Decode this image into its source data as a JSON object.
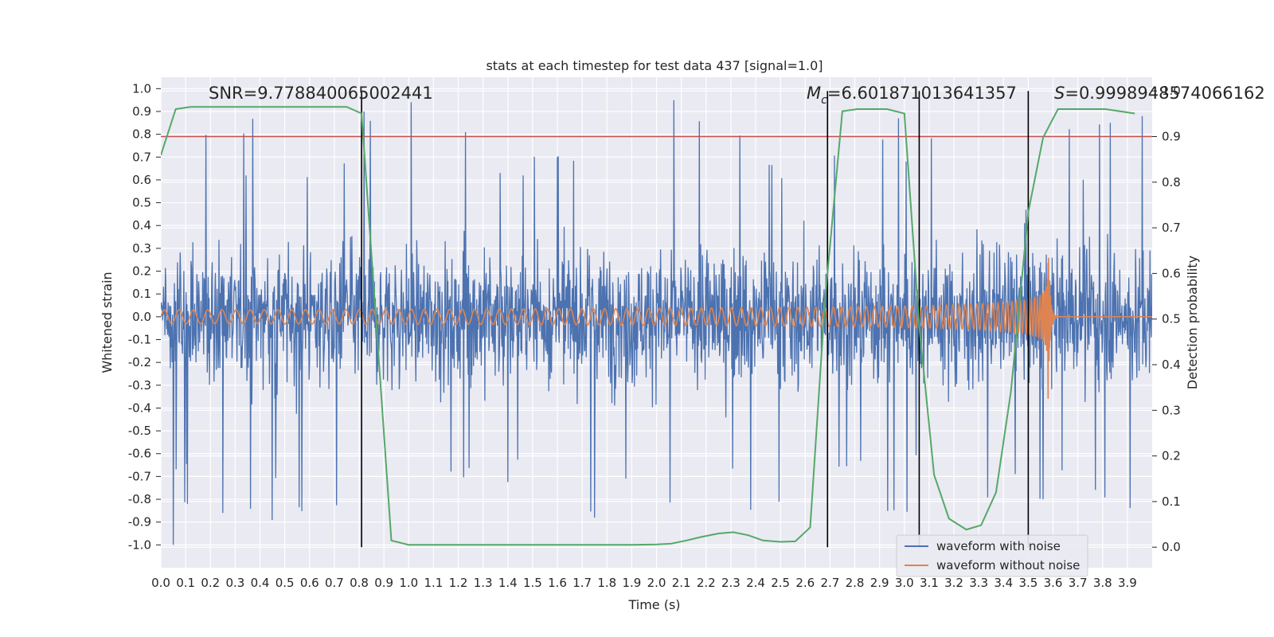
{
  "chart_data": {
    "type": "line",
    "title": "stats at each timestep for test data 437 [signal=1.0]",
    "xlabel": "Time (s)",
    "ylabel": "Whitened strain",
    "y2label": "Detection probability",
    "xlim": [
      0.0,
      4.0
    ],
    "ylim": [
      -1.1,
      1.05
    ],
    "y2lim": [
      -0.045,
      1.03
    ],
    "x_ticks": [
      "0.0",
      "0.1",
      "0.2",
      "0.3",
      "0.4",
      "0.5",
      "0.6",
      "0.7",
      "0.8",
      "0.9",
      "1.0",
      "1.1",
      "1.2",
      "1.3",
      "1.4",
      "1.5",
      "1.6",
      "1.7",
      "1.8",
      "1.9",
      "2.0",
      "2.1",
      "2.2",
      "2.3",
      "2.4",
      "2.5",
      "2.6",
      "2.7",
      "2.8",
      "2.9",
      "3.0",
      "3.1",
      "3.2",
      "3.3",
      "3.4",
      "3.5",
      "3.6",
      "3.7",
      "3.8",
      "3.9"
    ],
    "y_ticks": [
      "1.0",
      "0.9",
      "0.8",
      "0.7",
      "0.6",
      "0.5",
      "0.4",
      "0.3",
      "0.2",
      "0.1",
      "0.0",
      "-0.1",
      "-0.2",
      "-0.3",
      "-0.4",
      "-0.5",
      "-0.6",
      "-0.7",
      "-0.8",
      "-0.9",
      "-1.0"
    ],
    "y2_ticks": [
      "1.0",
      "0.9",
      "0.8",
      "0.7",
      "0.6",
      "0.5",
      "0.4",
      "0.3",
      "0.2",
      "0.1",
      "0.0"
    ],
    "series": [
      {
        "name": "waveform with noise",
        "axis": "left",
        "color": "#4c72b0",
        "description": "noisy whitened strain, roughly uniform amplitude across 0-4 s",
        "amplitude": 0.55,
        "spikes": [
          [
            0.05,
            -1.0
          ],
          [
            0.25,
            -0.86
          ],
          [
            1.01,
            0.94
          ],
          [
            1.75,
            -0.88
          ],
          [
            2.07,
            0.95
          ],
          [
            3.56,
            -0.8
          ],
          [
            0.82,
            0.9
          ]
        ]
      },
      {
        "name": "waveform without noise",
        "axis": "left",
        "color": "#dd8452",
        "description": "inspiral chirp signal growing toward merger near 3.58 s",
        "chirp_start": 0.0,
        "merger_time": 3.58,
        "amplitude_start": 0.03,
        "amplitude_peak": 0.36,
        "amplitude_peak_min": -0.26
      },
      {
        "name": "detection probability",
        "axis": "right",
        "color": "#55a868",
        "x": [
          0.0,
          0.06,
          0.12,
          0.2,
          0.3,
          0.4,
          0.5,
          0.6,
          0.7,
          0.75,
          0.81,
          0.87,
          0.93,
          1.0,
          1.1,
          1.2,
          1.3,
          1.4,
          1.5,
          1.6,
          1.7,
          1.8,
          1.9,
          2.0,
          2.06,
          2.12,
          2.18,
          2.25,
          2.31,
          2.37,
          2.43,
          2.5,
          2.56,
          2.62,
          2.68,
          2.75,
          2.81,
          2.87,
          2.93,
          3.0,
          3.06,
          3.12,
          3.18,
          3.25,
          3.31,
          3.37,
          3.43,
          3.5,
          3.56,
          3.62,
          3.68,
          3.75,
          3.81,
          3.87,
          3.93
        ],
        "values": [
          0.89,
          0.995,
          1.0,
          1.0,
          1.0,
          1.0,
          1.0,
          1.0,
          1.0,
          1.0,
          0.985,
          0.5,
          0.01,
          0.0,
          0.0,
          0.0,
          0.0,
          0.0,
          0.0,
          0.0,
          0.0,
          0.0,
          0.0,
          0.001,
          0.003,
          0.01,
          0.018,
          0.026,
          0.029,
          0.022,
          0.01,
          0.007,
          0.008,
          0.04,
          0.56,
          0.99,
          0.995,
          0.995,
          0.995,
          0.985,
          0.5,
          0.16,
          0.06,
          0.035,
          0.045,
          0.12,
          0.35,
          0.76,
          0.93,
          0.995,
          0.995,
          0.995,
          0.995,
          0.99,
          0.985
        ]
      }
    ],
    "threshold": {
      "axis": "right",
      "value": 0.9,
      "color": "#c44e52"
    },
    "vertical_lines": [
      0.81,
      2.69,
      3.06,
      3.5
    ],
    "annotations": [
      "SNR=9.778840065002441",
      "6.601871013641357",
      "0.9998948574066162"
    ],
    "annotation_prefixes": [
      "",
      "M",
      "S="
    ],
    "annotation_subscripts": [
      "",
      "c",
      ""
    ],
    "mc_equals": "=",
    "legend": {
      "position": "bottom-right",
      "entries": [
        "waveform with noise",
        "waveform without noise"
      ]
    }
  }
}
